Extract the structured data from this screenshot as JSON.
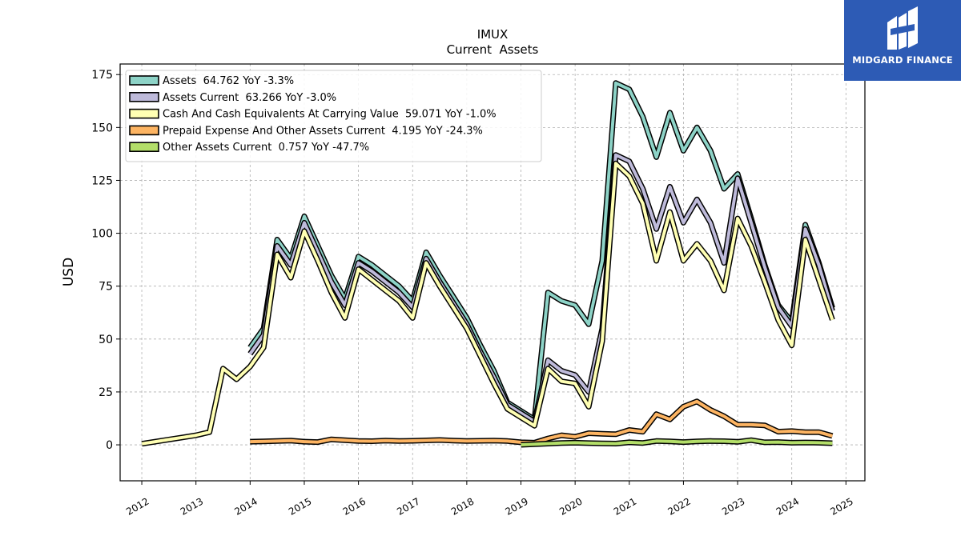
{
  "header": {
    "title": "IMUX",
    "subtitle": "Current  Assets"
  },
  "brand": {
    "name": "MIDGARD FINANCE",
    "color": "#2d5bb5",
    "icon": "midgard-logo-icon"
  },
  "chart_data": {
    "type": "line",
    "title": "IMUX",
    "subtitle": "Current  Assets",
    "xlabel": "",
    "ylabel": "USD",
    "xlim": [
      2011.6,
      2025.35
    ],
    "ylim": [
      -17,
      180
    ],
    "x_ticks": [
      2012,
      2013,
      2014,
      2015,
      2016,
      2017,
      2018,
      2019,
      2020,
      2021,
      2022,
      2023,
      2024,
      2025
    ],
    "y_ticks": [
      0,
      25,
      50,
      75,
      100,
      125,
      150,
      175
    ],
    "grid": true,
    "legend_position": "top-left",
    "series": [
      {
        "name": "Assets",
        "legend_label": "Assets  64.762 YoY -3.3%",
        "color": "#8dd3c7",
        "points": [
          [
            2014.0,
            46
          ],
          [
            2014.25,
            55
          ],
          [
            2014.5,
            97
          ],
          [
            2014.75,
            88
          ],
          [
            2015.0,
            108
          ],
          [
            2015.25,
            94
          ],
          [
            2015.5,
            80
          ],
          [
            2015.75,
            69
          ],
          [
            2016.0,
            89
          ],
          [
            2016.25,
            85
          ],
          [
            2016.5,
            80
          ],
          [
            2016.75,
            75
          ],
          [
            2017.0,
            68
          ],
          [
            2017.25,
            91
          ],
          [
            2017.5,
            80
          ],
          [
            2017.75,
            70
          ],
          [
            2018.0,
            60
          ],
          [
            2018.25,
            47
          ],
          [
            2018.5,
            35
          ],
          [
            2018.75,
            20
          ],
          [
            2019.0,
            16
          ],
          [
            2019.25,
            12
          ],
          [
            2019.5,
            72
          ],
          [
            2019.75,
            68
          ],
          [
            2020.0,
            66
          ],
          [
            2020.25,
            57
          ],
          [
            2020.5,
            87
          ],
          [
            2020.75,
            171
          ],
          [
            2021.0,
            168
          ],
          [
            2021.25,
            155
          ],
          [
            2021.5,
            136
          ],
          [
            2021.75,
            157
          ],
          [
            2022.0,
            139
          ],
          [
            2022.25,
            150
          ],
          [
            2022.5,
            139
          ],
          [
            2022.75,
            121
          ],
          [
            2023.0,
            128
          ],
          [
            2023.25,
            107
          ],
          [
            2023.5,
            85
          ],
          [
            2023.75,
            66
          ],
          [
            2024.0,
            58
          ],
          [
            2024.25,
            104
          ],
          [
            2024.5,
            86
          ],
          [
            2024.75,
            64.762
          ]
        ]
      },
      {
        "name": "Assets Current",
        "legend_label": "Assets Current  63.266 YoY -3.0%",
        "color": "#bebada",
        "points": [
          [
            2014.0,
            43
          ],
          [
            2014.25,
            52
          ],
          [
            2014.5,
            94
          ],
          [
            2014.75,
            85
          ],
          [
            2015.0,
            105
          ],
          [
            2015.25,
            91
          ],
          [
            2015.5,
            77
          ],
          [
            2015.75,
            66
          ],
          [
            2016.0,
            86
          ],
          [
            2016.25,
            82
          ],
          [
            2016.5,
            77
          ],
          [
            2016.75,
            72
          ],
          [
            2017.0,
            65
          ],
          [
            2017.25,
            88
          ],
          [
            2017.5,
            77
          ],
          [
            2017.75,
            67
          ],
          [
            2018.0,
            57
          ],
          [
            2018.25,
            44
          ],
          [
            2018.5,
            32
          ],
          [
            2018.75,
            19
          ],
          [
            2019.0,
            15
          ],
          [
            2019.25,
            11
          ],
          [
            2019.5,
            40
          ],
          [
            2019.75,
            35
          ],
          [
            2020.0,
            33
          ],
          [
            2020.25,
            25
          ],
          [
            2020.5,
            55
          ],
          [
            2020.75,
            137
          ],
          [
            2021.0,
            134
          ],
          [
            2021.25,
            121
          ],
          [
            2021.5,
            102
          ],
          [
            2021.75,
            122
          ],
          [
            2022.0,
            105
          ],
          [
            2022.25,
            116
          ],
          [
            2022.5,
            105
          ],
          [
            2022.75,
            86
          ],
          [
            2023.0,
            126
          ],
          [
            2023.25,
            105
          ],
          [
            2023.5,
            84
          ],
          [
            2023.75,
            65
          ],
          [
            2024.0,
            56
          ],
          [
            2024.25,
            102
          ],
          [
            2024.5,
            85
          ],
          [
            2024.75,
            63.266
          ]
        ]
      },
      {
        "name": "Cash And Cash Equivalents At Carrying Value",
        "legend_label": "Cash And Cash Equivalents At Carrying Value  59.071 YoY -1.0%",
        "color": "#ffffb3",
        "points": [
          [
            2012.0,
            0.5
          ],
          [
            2012.25,
            1.5
          ],
          [
            2012.5,
            2.5
          ],
          [
            2012.75,
            3.5
          ],
          [
            2013.0,
            4.5
          ],
          [
            2013.25,
            6
          ],
          [
            2013.5,
            36
          ],
          [
            2013.75,
            31
          ],
          [
            2014.0,
            37
          ],
          [
            2014.25,
            46
          ],
          [
            2014.5,
            90
          ],
          [
            2014.75,
            79
          ],
          [
            2015.0,
            101
          ],
          [
            2015.25,
            87
          ],
          [
            2015.5,
            72
          ],
          [
            2015.75,
            60
          ],
          [
            2016.0,
            83
          ],
          [
            2016.25,
            78
          ],
          [
            2016.5,
            73
          ],
          [
            2016.75,
            68
          ],
          [
            2017.0,
            60
          ],
          [
            2017.25,
            86
          ],
          [
            2017.5,
            75
          ],
          [
            2017.75,
            65
          ],
          [
            2018.0,
            55
          ],
          [
            2018.25,
            42
          ],
          [
            2018.5,
            29
          ],
          [
            2018.75,
            17
          ],
          [
            2019.0,
            13
          ],
          [
            2019.25,
            9
          ],
          [
            2019.5,
            36
          ],
          [
            2019.75,
            30
          ],
          [
            2020.0,
            29
          ],
          [
            2020.25,
            18
          ],
          [
            2020.5,
            49
          ],
          [
            2020.75,
            133
          ],
          [
            2021.0,
            127
          ],
          [
            2021.25,
            114
          ],
          [
            2021.5,
            87
          ],
          [
            2021.75,
            110
          ],
          [
            2022.0,
            87
          ],
          [
            2022.25,
            95
          ],
          [
            2022.5,
            87
          ],
          [
            2022.75,
            73
          ],
          [
            2023.0,
            107
          ],
          [
            2023.25,
            94
          ],
          [
            2023.5,
            77
          ],
          [
            2023.75,
            59
          ],
          [
            2024.0,
            47
          ],
          [
            2024.25,
            97
          ],
          [
            2024.5,
            78
          ],
          [
            2024.75,
            59.071
          ]
        ]
      },
      {
        "name": "Prepaid Expense And Other Assets Current",
        "legend_label": "Prepaid Expense And Other Assets Current  4.195 YoY -24.3%",
        "color": "#fdb462",
        "points": [
          [
            2014.0,
            1.5
          ],
          [
            2014.25,
            1.6
          ],
          [
            2014.5,
            1.8
          ],
          [
            2014.75,
            2.0
          ],
          [
            2015.0,
            1.5
          ],
          [
            2015.25,
            1.3
          ],
          [
            2015.5,
            2.6
          ],
          [
            2015.75,
            2.2
          ],
          [
            2016.0,
            1.8
          ],
          [
            2016.25,
            1.7
          ],
          [
            2016.5,
            2.0
          ],
          [
            2016.75,
            1.8
          ],
          [
            2017.0,
            1.9
          ],
          [
            2017.25,
            2.1
          ],
          [
            2017.5,
            2.3
          ],
          [
            2017.75,
            2.0
          ],
          [
            2018.0,
            1.8
          ],
          [
            2018.25,
            1.9
          ],
          [
            2018.5,
            2.0
          ],
          [
            2018.75,
            1.8
          ],
          [
            2019.0,
            1.2
          ],
          [
            2019.25,
            1.0
          ],
          [
            2019.5,
            3.0
          ],
          [
            2019.75,
            4.5
          ],
          [
            2020.0,
            3.8
          ],
          [
            2020.25,
            5.5
          ],
          [
            2020.5,
            5.2
          ],
          [
            2020.75,
            5.0
          ],
          [
            2021.0,
            7.0
          ],
          [
            2021.25,
            6.2
          ],
          [
            2021.5,
            14.5
          ],
          [
            2021.75,
            12.0
          ],
          [
            2022.0,
            18.0
          ],
          [
            2022.25,
            20.5
          ],
          [
            2022.5,
            16.5
          ],
          [
            2022.75,
            13.5
          ],
          [
            2023.0,
            9.5
          ],
          [
            2023.25,
            9.5
          ],
          [
            2023.5,
            9.2
          ],
          [
            2023.75,
            6.2
          ],
          [
            2024.0,
            6.5
          ],
          [
            2024.25,
            6.0
          ],
          [
            2024.5,
            6.0
          ],
          [
            2024.75,
            4.195
          ]
        ]
      },
      {
        "name": "Other Assets Current",
        "legend_label": "Other Assets Current  0.757 YoY -47.7%",
        "color": "#b3de69",
        "points": [
          [
            2019.0,
            0.0
          ],
          [
            2019.25,
            0.3
          ],
          [
            2019.5,
            0.6
          ],
          [
            2019.75,
            0.9
          ],
          [
            2020.0,
            1.0
          ],
          [
            2020.25,
            0.8
          ],
          [
            2020.5,
            0.7
          ],
          [
            2020.75,
            0.6
          ],
          [
            2021.0,
            1.2
          ],
          [
            2021.25,
            0.9
          ],
          [
            2021.5,
            1.8
          ],
          [
            2021.75,
            1.6
          ],
          [
            2022.0,
            1.3
          ],
          [
            2022.25,
            1.6
          ],
          [
            2022.5,
            1.8
          ],
          [
            2022.75,
            1.7
          ],
          [
            2023.0,
            1.4
          ],
          [
            2023.25,
            2.2
          ],
          [
            2023.5,
            1.2
          ],
          [
            2023.75,
            1.3
          ],
          [
            2024.0,
            1.0
          ],
          [
            2024.25,
            1.1
          ],
          [
            2024.5,
            1.0
          ],
          [
            2024.75,
            0.757
          ]
        ]
      }
    ]
  }
}
